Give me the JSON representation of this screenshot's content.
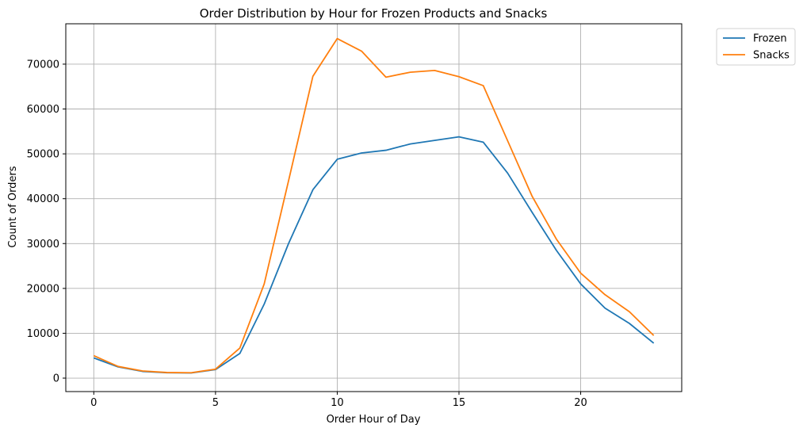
{
  "chart_data": {
    "type": "line",
    "title": "Order Distribution by Hour for Frozen Products and Snacks",
    "xlabel": "Order Hour of Day",
    "ylabel": "Count of Orders",
    "x": [
      0,
      1,
      2,
      3,
      4,
      5,
      6,
      7,
      8,
      9,
      10,
      11,
      12,
      13,
      14,
      15,
      16,
      17,
      18,
      19,
      20,
      21,
      22,
      23
    ],
    "xlim": [
      -1.15,
      24.15
    ],
    "ylim": [
      -3000,
      79000
    ],
    "xticks": [
      0,
      5,
      10,
      15,
      20
    ],
    "xtick_labels": [
      "0",
      "5",
      "10",
      "15",
      "20"
    ],
    "yticks": [
      0,
      10000,
      20000,
      30000,
      40000,
      50000,
      60000,
      70000
    ],
    "ytick_labels": [
      "0",
      "10000",
      "20000",
      "30000",
      "40000",
      "50000",
      "60000",
      "70000"
    ],
    "grid": true,
    "legend_position": "outside top-right",
    "series": [
      {
        "name": "Frozen",
        "color": "#1f77b4",
        "values": [
          4500,
          2500,
          1500,
          1200,
          1150,
          1900,
          5500,
          16500,
          30000,
          42000,
          48800,
          50200,
          50800,
          52200,
          53000,
          53800,
          52600,
          45700,
          37000,
          28500,
          21000,
          15600,
          12200,
          7800
        ]
      },
      {
        "name": "Snacks",
        "color": "#ff7f0e",
        "values": [
          5000,
          2600,
          1600,
          1250,
          1200,
          2000,
          6700,
          21000,
          44000,
          67300,
          75700,
          72900,
          67100,
          68200,
          68600,
          67200,
          65200,
          52900,
          40600,
          31000,
          23400,
          18600,
          14800,
          9500
        ]
      }
    ]
  }
}
